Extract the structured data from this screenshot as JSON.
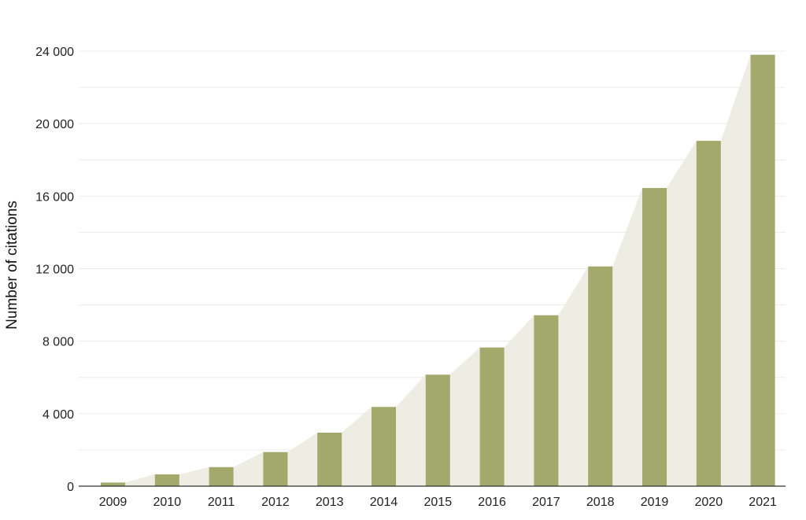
{
  "chart_data": {
    "type": "bar",
    "title": "",
    "xlabel": "",
    "ylabel": "Number of citations",
    "categories": [
      "2009",
      "2010",
      "2011",
      "2012",
      "2013",
      "2014",
      "2015",
      "2016",
      "2017",
      "2018",
      "2019",
      "2020",
      "2021"
    ],
    "values": [
      200,
      650,
      1050,
      1880,
      2950,
      4370,
      6150,
      7650,
      9430,
      12120,
      16450,
      19050,
      23800
    ],
    "ylim": [
      0,
      24000
    ],
    "yticks": [
      0,
      4000,
      8000,
      12000,
      16000,
      20000,
      24000
    ],
    "ytick_labels": [
      "0",
      "4 000",
      "8 000",
      "12 000",
      "16 000",
      "20 000",
      "24 000"
    ],
    "grid": true,
    "legend": "none",
    "colors": {
      "bar": "#a3a86b",
      "area": "#edede3",
      "grid": "#ececec",
      "axis": "#333333"
    }
  }
}
